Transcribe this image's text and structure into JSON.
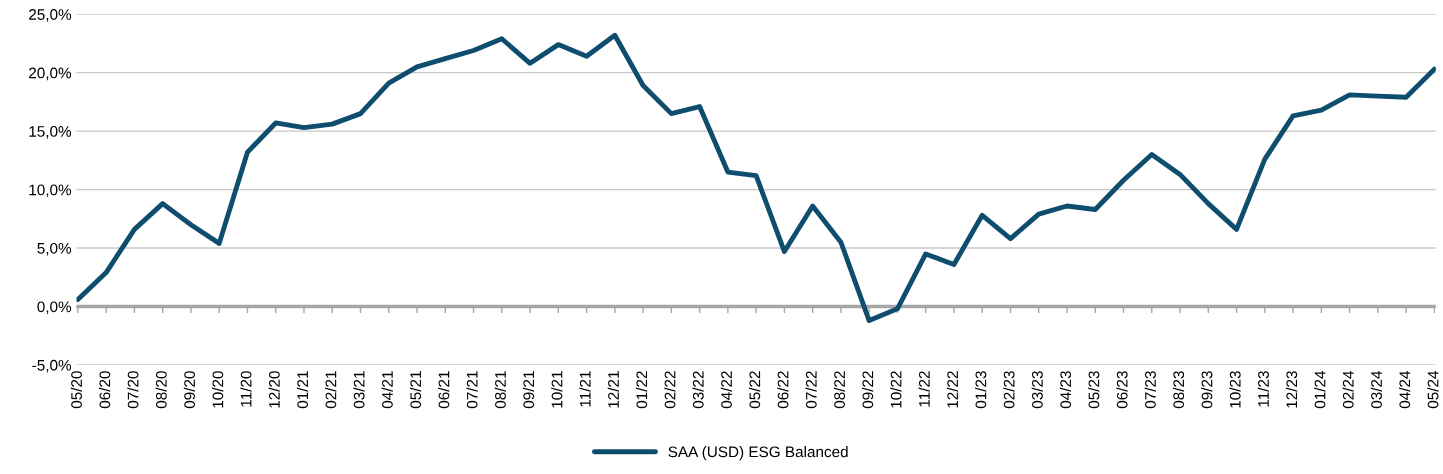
{
  "chart_data": {
    "type": "line",
    "categories": [
      "05/20",
      "06/20",
      "07/20",
      "08/20",
      "09/20",
      "10/20",
      "11/20",
      "12/20",
      "01/21",
      "02/21",
      "03/21",
      "04/21",
      "05/21",
      "06/21",
      "07/21",
      "08/21",
      "09/21",
      "10/21",
      "11/21",
      "12/21",
      "01/22",
      "02/22",
      "03/22",
      "04/22",
      "05/22",
      "06/22",
      "07/22",
      "08/22",
      "09/22",
      "10/22",
      "11/22",
      "12/22",
      "01/23",
      "02/23",
      "03/23",
      "04/23",
      "05/23",
      "06/23",
      "07/23",
      "08/23",
      "09/23",
      "10/23",
      "11/23",
      "12/23",
      "01/24",
      "02/24",
      "03/24",
      "04/24",
      "05/24"
    ],
    "series": [
      {
        "name": "SAA (USD) ESG Balanced",
        "color": "#0e4d6e",
        "values": [
          0.6,
          2.9,
          6.6,
          8.8,
          7.0,
          5.4,
          13.2,
          15.7,
          15.3,
          15.6,
          16.5,
          19.1,
          20.5,
          21.2,
          21.9,
          22.9,
          20.8,
          22.4,
          21.4,
          23.2,
          18.9,
          16.5,
          17.1,
          11.5,
          11.2,
          4.7,
          8.6,
          5.5,
          -1.2,
          -0.2,
          4.5,
          3.6,
          7.8,
          5.8,
          7.9,
          8.6,
          8.3,
          10.8,
          13.0,
          11.3,
          8.8,
          6.6,
          12.6,
          16.3,
          16.8,
          18.1,
          18.0,
          17.9,
          20.3
        ]
      }
    ],
    "ylim": [
      -5,
      25
    ],
    "yticks": [
      {
        "value": -5,
        "label": "-5,0%"
      },
      {
        "value": 0,
        "label": "0,0%"
      },
      {
        "value": 5,
        "label": "5,0%"
      },
      {
        "value": 10,
        "label": "10,0%"
      },
      {
        "value": 15,
        "label": "15,0%"
      },
      {
        "value": 20,
        "label": "20,0%"
      },
      {
        "value": 25,
        "label": "25,0%"
      }
    ],
    "grid": "y",
    "legend": "bottom",
    "marker": "none",
    "line_style": "solid"
  }
}
